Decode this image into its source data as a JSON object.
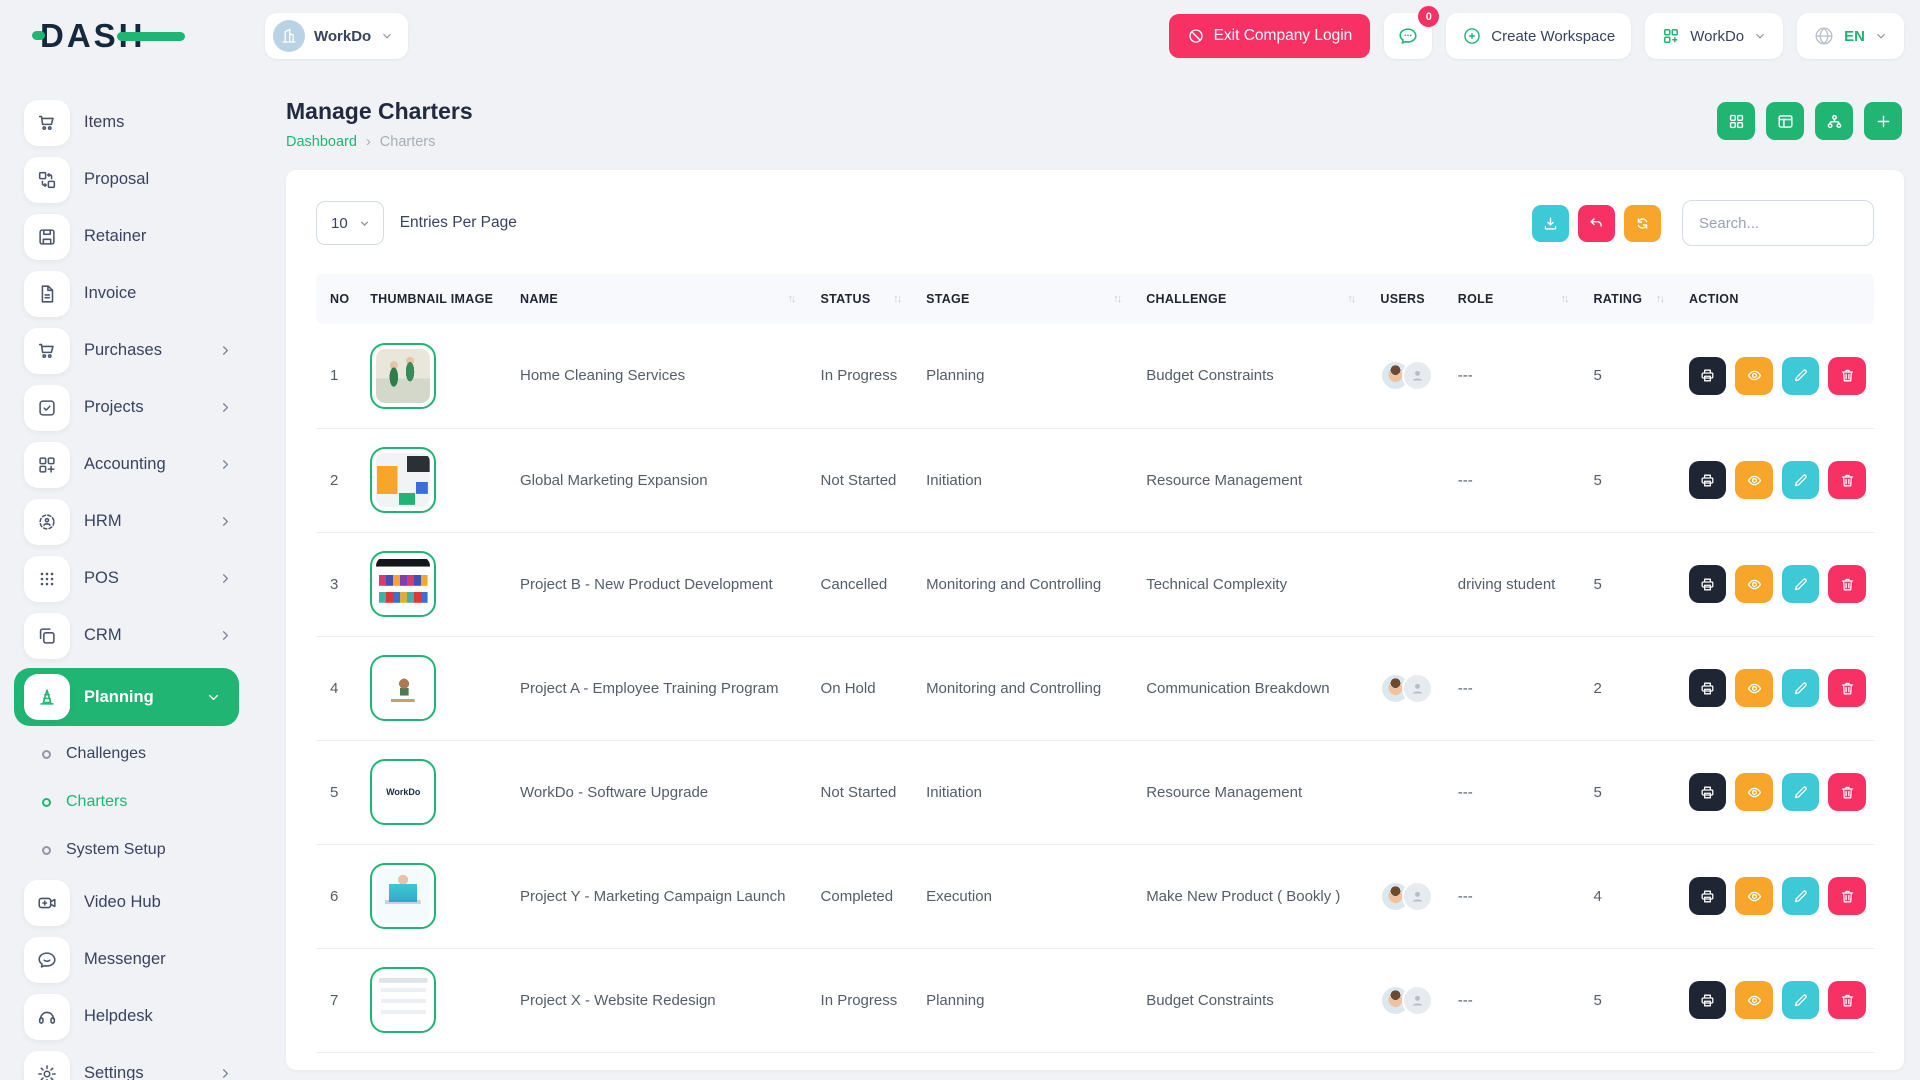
{
  "brand": {
    "logo_text": "DASH"
  },
  "topbar": {
    "company_switcher_label": "WorkDo",
    "exit_label": "Exit Company Login",
    "messages_badge": "0",
    "create_workspace_label": "Create Workspace",
    "workspace_label": "WorkDo",
    "language": "EN"
  },
  "sidebar": {
    "items": [
      {
        "label": "Items",
        "icon": "cart",
        "has_submenu": false
      },
      {
        "label": "Proposal",
        "icon": "flow",
        "has_submenu": false
      },
      {
        "label": "Retainer",
        "icon": "floppy",
        "has_submenu": false
      },
      {
        "label": "Invoice",
        "icon": "document",
        "has_submenu": false
      },
      {
        "label": "Purchases",
        "icon": "cart",
        "has_submenu": true
      },
      {
        "label": "Projects",
        "icon": "check-square",
        "has_submenu": true
      },
      {
        "label": "Accounting",
        "icon": "grid-plus",
        "has_submenu": true
      },
      {
        "label": "HRM",
        "icon": "target",
        "has_submenu": true
      },
      {
        "label": "POS",
        "icon": "dots-grid",
        "has_submenu": true
      },
      {
        "label": "CRM",
        "icon": "copy",
        "has_submenu": true
      },
      {
        "label": "Planning",
        "icon": "cone",
        "has_submenu": true,
        "active": true,
        "expanded": true,
        "submenu": [
          {
            "label": "Challenges",
            "active": false
          },
          {
            "label": "Charters",
            "active": true
          },
          {
            "label": "System Setup",
            "active": false
          }
        ]
      },
      {
        "label": "Video Hub",
        "icon": "video",
        "has_submenu": false
      },
      {
        "label": "Messenger",
        "icon": "chat",
        "has_submenu": false
      },
      {
        "label": "Helpdesk",
        "icon": "headset",
        "has_submenu": false
      },
      {
        "label": "Settings",
        "icon": "gear",
        "has_submenu": true
      }
    ]
  },
  "page": {
    "title": "Manage Charters",
    "breadcrumb": [
      "Dashboard",
      "Charters"
    ],
    "header_actions": [
      {
        "name": "grid-view",
        "icon": "grid4"
      },
      {
        "name": "table-view",
        "icon": "board"
      },
      {
        "name": "hierarchy-view",
        "icon": "sitemap"
      },
      {
        "name": "add-charter",
        "icon": "plus"
      }
    ]
  },
  "controls": {
    "entries_value": "10",
    "entries_label": "Entries Per Page",
    "search_placeholder": "Search...",
    "buttons": [
      {
        "name": "export",
        "icon": "download",
        "color": "cyan"
      },
      {
        "name": "undo",
        "icon": "undo",
        "color": "pink"
      },
      {
        "name": "refresh",
        "icon": "refresh",
        "color": "orange"
      }
    ]
  },
  "table": {
    "columns": [
      {
        "label": "NO",
        "sortable": false
      },
      {
        "label": "THUMBNAIL IMAGE",
        "sortable": false
      },
      {
        "label": "NAME",
        "sortable": true
      },
      {
        "label": "STATUS",
        "sortable": true
      },
      {
        "label": "STAGE",
        "sortable": true
      },
      {
        "label": "CHALLENGE",
        "sortable": true
      },
      {
        "label": "USERS",
        "sortable": false
      },
      {
        "label": "ROLE",
        "sortable": true
      },
      {
        "label": "RATING",
        "sortable": true
      },
      {
        "label": "ACTION",
        "sortable": false
      }
    ],
    "row_actions": [
      {
        "name": "print",
        "icon": "print",
        "color": "dark"
      },
      {
        "name": "view",
        "icon": "eye",
        "color": "orange"
      },
      {
        "name": "edit",
        "icon": "pencil",
        "color": "cyan"
      },
      {
        "name": "delete",
        "icon": "trash",
        "color": "pink"
      }
    ],
    "rows": [
      {
        "no": "1",
        "thumb": "cleaning-photo",
        "name": "Home Cleaning Services",
        "status": "In Progress",
        "stage": "Planning",
        "challenge": "Budget Constraints",
        "users": [
          "photo",
          "placeholder"
        ],
        "role": "---",
        "rating": "5"
      },
      {
        "no": "2",
        "thumb": "marketing-collage",
        "name": "Global Marketing Expansion",
        "status": "Not Started",
        "stage": "Initiation",
        "challenge": "Resource Management",
        "users": [],
        "role": "---",
        "rating": "5"
      },
      {
        "no": "3",
        "thumb": "movies-website",
        "name": "Project B - New Product Development",
        "status": "Cancelled",
        "stage": "Monitoring and Controlling",
        "challenge": "Technical Complexity",
        "users": [],
        "role": "driving student",
        "rating": "5"
      },
      {
        "no": "4",
        "thumb": "desk-illustration",
        "name": "Project A - Employee Training Program",
        "status": "On Hold",
        "stage": "Monitoring and Controlling",
        "challenge": "Communication Breakdown",
        "users": [
          "photo",
          "placeholder"
        ],
        "role": "---",
        "rating": "2"
      },
      {
        "no": "5",
        "thumb": "workdo-logo",
        "thumb_text": "WorkDo",
        "name": "WorkDo - Software Upgrade",
        "status": "Not Started",
        "stage": "Initiation",
        "challenge": "Resource Management",
        "users": [],
        "role": "---",
        "rating": "5"
      },
      {
        "no": "6",
        "thumb": "laptop-illustration",
        "name": "Project Y - Marketing Campaign Launch",
        "status": "Completed",
        "stage": "Execution",
        "challenge": "Make New Product ( Bookly )",
        "users": [
          "photo",
          "placeholder"
        ],
        "role": "---",
        "rating": "4"
      },
      {
        "no": "7",
        "thumb": "website-light",
        "name": "Project X - Website Redesign",
        "status": "In Progress",
        "stage": "Planning",
        "challenge": "Budget Constraints",
        "users": [
          "photo",
          "placeholder"
        ],
        "role": "---",
        "rating": "5"
      }
    ]
  },
  "colors": {
    "primary_green": "#21b573",
    "pink": "#f73164",
    "cyan": "#3ec9d6",
    "orange": "#f7a62b",
    "dark": "#1f2533",
    "text": "#39435f",
    "muted": "#9aa0ac",
    "background": "#f0f2f5",
    "card": "#ffffff",
    "table_header_bg": "#f8f9fc",
    "border": "#e9ecf2"
  }
}
